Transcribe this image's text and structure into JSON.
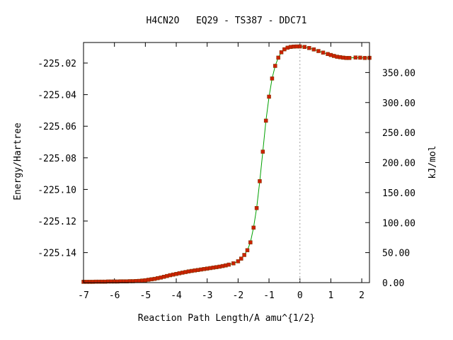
{
  "chart_data": {
    "type": "line",
    "title": "H4CN2O   EQ29 - TS387 - DDC71",
    "xlabel": "Reaction Path Length/A amu^{1/2}",
    "ylabel": "Energy/Hartree",
    "y2label": "kJ/mol",
    "xlim": [
      -7.0,
      2.25
    ],
    "ylim": [
      -225.159,
      -225.007
    ],
    "y2lim": [
      0.0,
      400.0
    ],
    "x_ticks": [
      -7,
      -6,
      -5,
      -4,
      -3,
      -2,
      -1,
      0,
      1,
      2
    ],
    "x_tick_labels": [
      "-7",
      "-6",
      "-5",
      "-4",
      "-3",
      "-2",
      "-1",
      "0",
      "1",
      "2"
    ],
    "y_ticks": [
      -225.02,
      -225.04,
      -225.06,
      -225.08,
      -225.1,
      -225.12,
      -225.14
    ],
    "y_tick_labels": [
      "-225.02",
      "-225.04",
      "-225.06",
      "-225.08",
      "-225.10",
      "-225.12",
      "-225.14"
    ],
    "y2_ticks": [
      0,
      50,
      100,
      150,
      200,
      250,
      300,
      350
    ],
    "y2_tick_labels": [
      "0.00",
      "50.00",
      "100.00",
      "150.00",
      "200.00",
      "250.00",
      "300.00",
      "350.00"
    ],
    "ts_marker_x": 0,
    "grid": false,
    "colors": {
      "line": "#00a000",
      "marker": "#cc2200",
      "ts_line": "#a0a0a0"
    },
    "x": [
      -7.0,
      -6.9,
      -6.8,
      -6.7,
      -6.6,
      -6.5,
      -6.4,
      -6.3,
      -6.2,
      -6.1,
      -6.0,
      -5.9,
      -5.8,
      -5.7,
      -5.6,
      -5.5,
      -5.4,
      -5.3,
      -5.2,
      -5.1,
      -5.0,
      -4.9,
      -4.8,
      -4.7,
      -4.6,
      -4.5,
      -4.4,
      -4.3,
      -4.2,
      -4.1,
      -4.0,
      -3.9,
      -3.8,
      -3.7,
      -3.6,
      -3.5,
      -3.4,
      -3.3,
      -3.2,
      -3.1,
      -3.0,
      -2.9,
      -2.8,
      -2.7,
      -2.6,
      -2.5,
      -2.4,
      -2.3,
      -2.15,
      -2.0,
      -1.9,
      -1.8,
      -1.7,
      -1.6,
      -1.5,
      -1.4,
      -1.3,
      -1.2,
      -1.1,
      -1.0,
      -0.9,
      -0.8,
      -0.7,
      -0.6,
      -0.5,
      -0.4,
      -0.3,
      -0.2,
      -0.1,
      0.0,
      0.15,
      0.3,
      0.45,
      0.6,
      0.75,
      0.9,
      1.0,
      1.1,
      1.2,
      1.3,
      1.4,
      1.5,
      1.6,
      1.8,
      1.95,
      2.1,
      2.25
    ],
    "y": [
      -225.1585,
      -225.1585,
      -225.1585,
      -225.1585,
      -225.1584,
      -225.1584,
      -225.1584,
      -225.1584,
      -225.1583,
      -225.1583,
      -225.1583,
      -225.1583,
      -225.1582,
      -225.1582,
      -225.1582,
      -225.1581,
      -225.1581,
      -225.158,
      -225.1579,
      -225.1577,
      -225.1575,
      -225.1572,
      -225.1569,
      -225.1566,
      -225.1562,
      -225.1558,
      -225.1553,
      -225.1548,
      -225.1543,
      -225.1539,
      -225.1535,
      -225.1531,
      -225.1527,
      -225.1523,
      -225.1519,
      -225.1516,
      -225.1513,
      -225.151,
      -225.1507,
      -225.1504,
      -225.1501,
      -225.1498,
      -225.1495,
      -225.1492,
      -225.1489,
      -225.1485,
      -225.1481,
      -225.1476,
      -225.1468,
      -225.1455,
      -225.1438,
      -225.1415,
      -225.1385,
      -225.1335,
      -225.1242,
      -225.1118,
      -225.0948,
      -225.0761,
      -225.0565,
      -225.0413,
      -225.0298,
      -225.0218,
      -225.0166,
      -225.0132,
      -225.0113,
      -225.0103,
      -225.0098,
      -225.0096,
      -225.0095,
      -225.0095,
      -225.0098,
      -225.0105,
      -225.0114,
      -225.0124,
      -225.0134,
      -225.0143,
      -225.0149,
      -225.0155,
      -225.016,
      -225.0163,
      -225.0166,
      -225.0168,
      -225.0168,
      -225.0165,
      -225.0166,
      -225.0168,
      -225.0167
    ]
  }
}
